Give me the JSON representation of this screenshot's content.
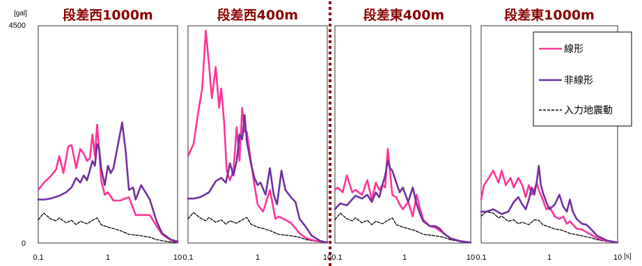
{
  "chart_data": {
    "type": "line",
    "y_unit": "[gal]",
    "x_unit": "[s]",
    "y_ticks": [
      "0",
      "4500"
    ],
    "ylim": [
      0,
      4500
    ],
    "xlim": [
      0.1,
      10
    ],
    "x_scale": "log",
    "x_ticks": [
      "0.1",
      "1",
      "10"
    ],
    "legend_position": "top-right",
    "series_style": [
      {
        "name": "線形",
        "color": "#ff3399",
        "dash": "solid"
      },
      {
        "name": "非線形",
        "color": "#7030a0",
        "dash": "solid"
      },
      {
        "name": "入力地震動",
        "color": "#000000",
        "dash": "dashed"
      }
    ],
    "panels": [
      {
        "title": "段差西1000m",
        "series": [
          {
            "name": "線形",
            "x": [
              0.1,
              0.12,
              0.15,
              0.18,
              0.2,
              0.23,
              0.27,
              0.3,
              0.35,
              0.4,
              0.45,
              0.5,
              0.55,
              0.6,
              0.65,
              0.7,
              0.75,
              0.8,
              0.9,
              1.0,
              1.2,
              1.5,
              2.0,
              2.5,
              3.0,
              4.0,
              5.0,
              6.0,
              8.0,
              10.0
            ],
            "y": [
              1100,
              1250,
              1380,
              1520,
              1800,
              1450,
              2000,
              2030,
              1550,
              1950,
              1850,
              1700,
              1750,
              2250,
              1800,
              2450,
              1900,
              1300,
              1000,
              1050,
              880,
              880,
              950,
              580,
              580,
              580,
              350,
              180,
              60,
              20
            ]
          },
          {
            "name": "非線形",
            "x": [
              0.1,
              0.12,
              0.15,
              0.2,
              0.25,
              0.3,
              0.35,
              0.4,
              0.45,
              0.5,
              0.55,
              0.6,
              0.65,
              0.7,
              0.75,
              0.8,
              0.9,
              1.0,
              1.1,
              1.2,
              1.4,
              1.6,
              1.8,
              2.0,
              2.3,
              2.5,
              3.0,
              4.0,
              5.0,
              6.0,
              8.0,
              10.0
            ],
            "y": [
              900,
              900,
              920,
              980,
              1050,
              1150,
              1350,
              1250,
              1400,
              1300,
              1500,
              1700,
              1600,
              2050,
              1950,
              1550,
              1200,
              1600,
              1450,
              1550,
              2050,
              2500,
              1900,
              1100,
              1150,
              900,
              1200,
              900,
              450,
              200,
              70,
              30
            ]
          },
          {
            "name": "入力地震動",
            "x": [
              0.1,
              0.12,
              0.15,
              0.18,
              0.2,
              0.25,
              0.3,
              0.35,
              0.4,
              0.5,
              0.6,
              0.7,
              0.8,
              1.0,
              1.2,
              1.5,
              2.0,
              3.0,
              4.0,
              5.0,
              7.0,
              10.0
            ],
            "y": [
              480,
              620,
              500,
              460,
              520,
              420,
              470,
              380,
              450,
              400,
              470,
              520,
              380,
              330,
              300,
              260,
              180,
              150,
              120,
              70,
              30,
              10
            ]
          }
        ]
      },
      {
        "title": "段差西400m",
        "series": [
          {
            "name": "線形",
            "x": [
              0.1,
              0.12,
              0.14,
              0.16,
              0.18,
              0.2,
              0.22,
              0.25,
              0.28,
              0.3,
              0.33,
              0.36,
              0.4,
              0.45,
              0.5,
              0.55,
              0.6,
              0.65,
              0.7,
              0.8,
              0.9,
              1.0,
              1.2,
              1.5,
              1.8,
              2.0,
              2.5,
              3.0,
              4.0,
              5.0,
              7.0,
              10.0
            ],
            "y": [
              1800,
              2050,
              2700,
              3200,
              4400,
              3700,
              3000,
              3650,
              2800,
              3200,
              2500,
              1500,
              1300,
              1500,
              2400,
              1700,
              2800,
              2300,
              2300,
              1700,
              1200,
              800,
              650,
              1100,
              500,
              550,
              480,
              420,
              200,
              100,
              40,
              15
            ]
          },
          {
            "name": "非線形",
            "x": [
              0.1,
              0.12,
              0.15,
              0.2,
              0.25,
              0.3,
              0.35,
              0.4,
              0.45,
              0.5,
              0.55,
              0.6,
              0.65,
              0.7,
              0.8,
              0.9,
              1.0,
              1.1,
              1.3,
              1.5,
              1.7,
              1.9,
              2.2,
              2.5,
              3.0,
              3.5,
              4.0,
              5.0,
              6.0,
              8.0,
              10.0
            ],
            "y": [
              920,
              920,
              950,
              1050,
              1280,
              1350,
              1250,
              1650,
              1400,
              1700,
              2250,
              2150,
              2650,
              2100,
              1650,
              1350,
              1200,
              1250,
              1000,
              1550,
              1000,
              800,
              1500,
              1100,
              950,
              850,
              500,
              320,
              150,
              40,
              10
            ]
          },
          {
            "name": "入力地震動",
            "x": [
              0.1,
              0.12,
              0.15,
              0.18,
              0.2,
              0.25,
              0.3,
              0.35,
              0.4,
              0.5,
              0.6,
              0.7,
              0.8,
              1.0,
              1.2,
              1.5,
              2.0,
              3.0,
              4.0,
              5.0,
              7.0,
              10.0
            ],
            "y": [
              500,
              630,
              520,
              460,
              530,
              430,
              480,
              390,
              460,
              410,
              480,
              530,
              390,
              330,
              300,
              260,
              180,
              150,
              120,
              70,
              30,
              10
            ]
          }
        ]
      },
      {
        "title": "段差東400m",
        "series": [
          {
            "name": "線形",
            "x": [
              0.1,
              0.11,
              0.13,
              0.15,
              0.18,
              0.2,
              0.25,
              0.3,
              0.35,
              0.4,
              0.45,
              0.5,
              0.55,
              0.58,
              0.6,
              0.65,
              0.7,
              0.8,
              0.9,
              1.0,
              1.2,
              1.4,
              1.6,
              1.8,
              2.0,
              2.5,
              3.0,
              4.0,
              5.0,
              7.0,
              10.0
            ],
            "y": [
              1100,
              1150,
              1050,
              1400,
              1050,
              1100,
              1000,
              1300,
              900,
              1250,
              1100,
              1200,
              1150,
              1650,
              1950,
              1450,
              1000,
              950,
              800,
              700,
              850,
              550,
              1000,
              700,
              480,
              350,
              320,
              200,
              100,
              40,
              10
            ]
          },
          {
            "name": "非線形",
            "x": [
              0.1,
              0.12,
              0.15,
              0.2,
              0.25,
              0.3,
              0.35,
              0.4,
              0.45,
              0.5,
              0.55,
              0.6,
              0.65,
              0.7,
              0.8,
              0.9,
              1.0,
              1.2,
              1.4,
              1.6,
              1.8,
              2.0,
              2.5,
              3.0,
              3.5,
              4.0,
              5.0,
              7.0,
              10.0
            ],
            "y": [
              700,
              820,
              780,
              980,
              920,
              1000,
              850,
              1050,
              950,
              1200,
              1400,
              1700,
              1550,
              1500,
              1250,
              1050,
              1150,
              850,
              1150,
              800,
              600,
              450,
              350,
              350,
              300,
              200,
              100,
              35,
              10
            ]
          },
          {
            "name": "入力地震動",
            "x": [
              0.1,
              0.12,
              0.15,
              0.18,
              0.2,
              0.25,
              0.3,
              0.35,
              0.4,
              0.5,
              0.6,
              0.7,
              0.8,
              1.0,
              1.2,
              1.5,
              2.0,
              3.0,
              4.0,
              5.0,
              7.0,
              10.0
            ],
            "y": [
              480,
              620,
              500,
              460,
              520,
              420,
              470,
              380,
              450,
              400,
              470,
              520,
              380,
              330,
              300,
              260,
              180,
              150,
              120,
              70,
              30,
              10
            ]
          }
        ]
      },
      {
        "title": "段差東1000m",
        "series": [
          {
            "name": "線形",
            "x": [
              0.1,
              0.11,
              0.13,
              0.15,
              0.18,
              0.2,
              0.23,
              0.27,
              0.3,
              0.35,
              0.4,
              0.45,
              0.5,
              0.55,
              0.6,
              0.65,
              0.7,
              0.8,
              0.9,
              1.0,
              1.2,
              1.4,
              1.6,
              1.8,
              2.0,
              2.5,
              3.0,
              4.0,
              5.0,
              7.0,
              10.0
            ],
            "y": [
              900,
              1200,
              1350,
              1500,
              1250,
              1500,
              1200,
              1350,
              1150,
              1350,
              1200,
              950,
              1200,
              1000,
              1100,
              1250,
              1100,
              900,
              700,
              750,
              550,
              500,
              550,
              400,
              450,
              300,
              280,
              180,
              100,
              40,
              10
            ]
          },
          {
            "name": "非線形",
            "x": [
              0.1,
              0.12,
              0.15,
              0.2,
              0.25,
              0.3,
              0.35,
              0.4,
              0.45,
              0.5,
              0.55,
              0.6,
              0.65,
              0.7,
              0.75,
              0.8,
              0.9,
              1.0,
              1.2,
              1.4,
              1.6,
              1.8,
              2.0,
              2.2,
              2.5,
              3.0,
              3.5,
              4.0,
              5.0,
              7.0,
              10.0
            ],
            "y": [
              650,
              650,
              700,
              600,
              650,
              850,
              950,
              800,
              700,
              900,
              1150,
              1000,
              1250,
              1600,
              1200,
              1050,
              850,
              700,
              800,
              1000,
              750,
              650,
              900,
              650,
              500,
              400,
              380,
              300,
              150,
              50,
              10
            ]
          },
          {
            "name": "入力地震動",
            "x": [
              0.1,
              0.12,
              0.15,
              0.18,
              0.2,
              0.25,
              0.3,
              0.35,
              0.4,
              0.5,
              0.6,
              0.7,
              0.8,
              1.0,
              1.2,
              1.5,
              2.0,
              3.0,
              4.0,
              5.0,
              7.0,
              10.0
            ],
            "y": [
              560,
              650,
              620,
              520,
              560,
              450,
              480,
              400,
              430,
              380,
              480,
              470,
              380,
              330,
              290,
              270,
              200,
              150,
              110,
              70,
              30,
              10
            ]
          }
        ]
      }
    ]
  }
}
